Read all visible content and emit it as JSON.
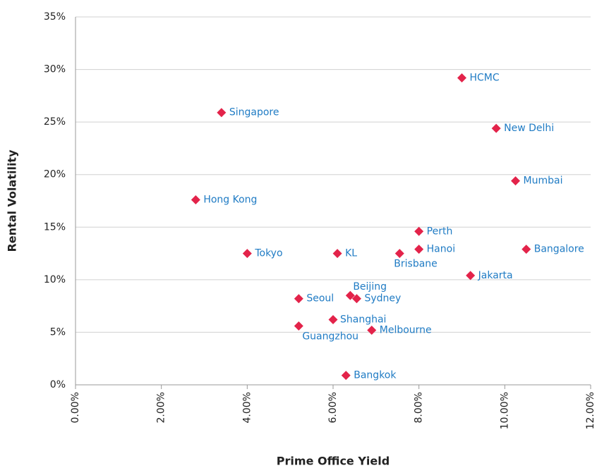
{
  "chart_data": {
    "type": "scatter",
    "xlabel": "Prime Office Yield",
    "ylabel": "Rental Volatility",
    "color": "#e3234a",
    "label_color": "#1f7bc4",
    "labels": [
      "Singapore",
      "HCMC",
      "New Delhi",
      "Mumbai",
      "Hong Kong",
      "Perth",
      "Hanoi",
      "Bangalore",
      "Tokyo",
      "KL",
      "Brisbane",
      "Jakarta",
      "Beijing",
      "Sydney",
      "Seoul",
      "Shanghai",
      "Guangzhou",
      "Melbourne",
      "Bangkok"
    ],
    "x": [
      3.4,
      9.0,
      9.8,
      10.25,
      2.8,
      8.0,
      8.0,
      10.5,
      4.0,
      6.1,
      7.55,
      9.2,
      6.4,
      6.55,
      5.2,
      6.0,
      5.2,
      6.9,
      6.3
    ],
    "values": [
      25.9,
      29.2,
      24.4,
      19.4,
      17.6,
      14.6,
      12.9,
      12.9,
      12.5,
      12.5,
      12.5,
      10.4,
      8.5,
      8.2,
      8.2,
      6.2,
      5.6,
      5.2,
      0.9
    ],
    "xlim": [
      0,
      12
    ],
    "ylim": [
      0,
      35
    ],
    "xticks": [
      {
        "value": 0,
        "label": "0.00%"
      },
      {
        "value": 2,
        "label": "2.00%"
      },
      {
        "value": 4,
        "label": "4.00%"
      },
      {
        "value": 6,
        "label": "6.00%"
      },
      {
        "value": 8,
        "label": "8.00%"
      },
      {
        "value": 10,
        "label": "10.00%"
      },
      {
        "value": 12,
        "label": "12.00%"
      }
    ],
    "yticks": [
      {
        "value": 0,
        "label": "0%"
      },
      {
        "value": 5,
        "label": "5%"
      },
      {
        "value": 10,
        "label": "10%"
      },
      {
        "value": 15,
        "label": "15%"
      },
      {
        "value": 20,
        "label": "20%"
      },
      {
        "value": 25,
        "label": "25%"
      },
      {
        "value": 30,
        "label": "30%"
      },
      {
        "value": 35,
        "label": "35%"
      }
    ],
    "grid": true
  }
}
